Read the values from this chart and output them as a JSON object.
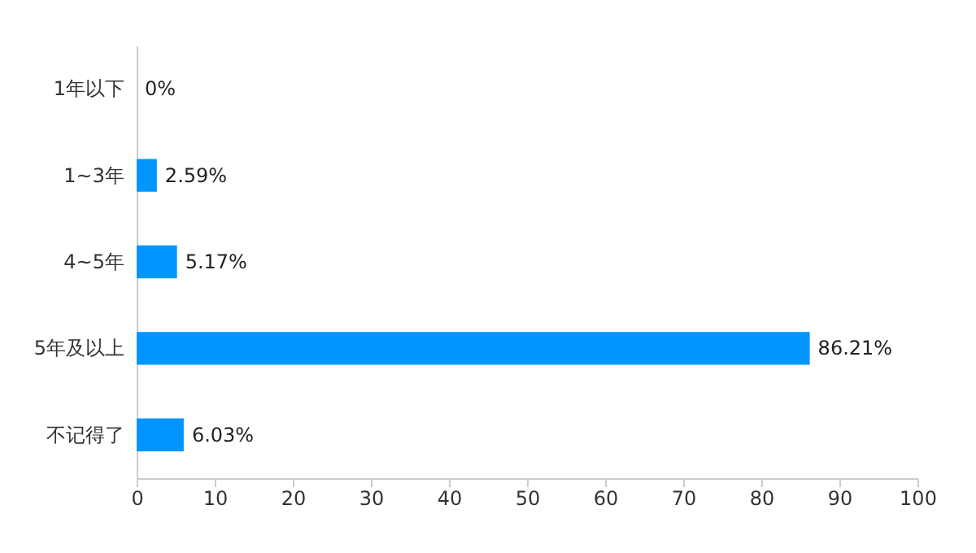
{
  "chart_data": {
    "type": "bar",
    "orientation": "horizontal",
    "categories": [
      "1年以下",
      "1~3年",
      "4~5年",
      "5年及以上",
      "不记得了"
    ],
    "values": [
      0,
      2.59,
      5.17,
      86.21,
      6.03
    ],
    "value_labels": [
      "0%",
      "2.59%",
      "5.17%",
      "86.21%",
      "6.03%"
    ],
    "color": "#0095ff",
    "xlim": [
      0,
      100
    ],
    "xticks": [
      0,
      10,
      20,
      30,
      40,
      50,
      60,
      70,
      80,
      90,
      100
    ],
    "grid": false
  }
}
